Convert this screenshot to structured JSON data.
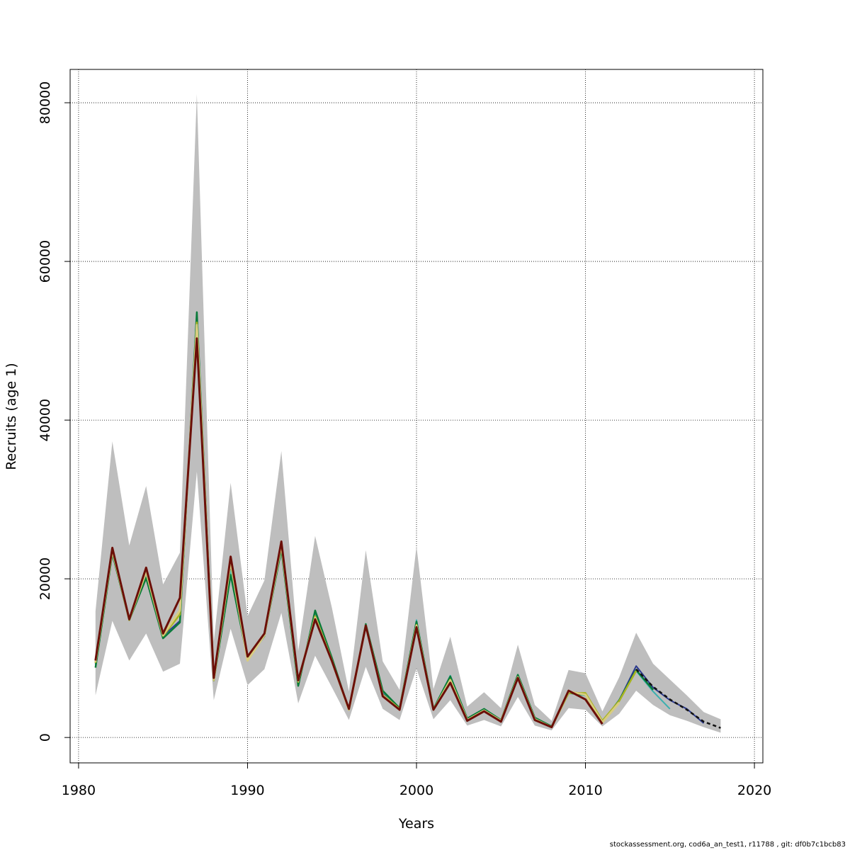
{
  "chart_data": {
    "type": "line",
    "title": "",
    "xlabel": "Years",
    "ylabel": "Recruits (age 1)",
    "xlim": [
      1979.5,
      2020.5
    ],
    "ylim": [
      -3200,
      84200
    ],
    "xticks": [
      1980,
      1990,
      2000,
      2010,
      2020
    ],
    "xtick_labels": [
      "1980",
      "1990",
      "2000",
      "2010",
      "2020"
    ],
    "yticks": [
      0,
      20000,
      40000,
      60000,
      80000
    ],
    "ytick_labels": [
      "0",
      "20000",
      "40000",
      "60000",
      "80000"
    ],
    "grid": true,
    "band": {
      "x": [
        1981,
        1982,
        1983,
        1984,
        1985,
        1986,
        1987,
        1988,
        1989,
        1990,
        1991,
        1992,
        1993,
        1994,
        1995,
        1996,
        1997,
        1998,
        1999,
        2000,
        2001,
        2002,
        2003,
        2004,
        2005,
        2006,
        2007,
        2008,
        2009,
        2010,
        2011,
        2012,
        2013,
        2014,
        2015,
        2016,
        2017,
        2018
      ],
      "low": [
        5300,
        14700,
        9700,
        13100,
        8300,
        9300,
        33500,
        4700,
        13700,
        6600,
        8600,
        15700,
        4300,
        10300,
        6300,
        2200,
        8900,
        3600,
        2200,
        8700,
        2300,
        4700,
        1500,
        2200,
        1400,
        5100,
        1500,
        900,
        3700,
        3500,
        1400,
        3000,
        5900,
        4100,
        2800,
        2100,
        1300,
        600
      ],
      "high": [
        15900,
        37300,
        24200,
        31700,
        19300,
        23300,
        81100,
        12100,
        32100,
        15300,
        19800,
        36100,
        10900,
        25400,
        16300,
        5800,
        23600,
        9600,
        6000,
        24100,
        6100,
        12700,
        3900,
        5700,
        3700,
        11700,
        4100,
        2100,
        8500,
        8100,
        3300,
        7600,
        13200,
        9300,
        7300,
        5300,
        3200,
        2300
      ]
    },
    "series": [
      {
        "color": "#2b3a8f",
        "width": 2,
        "x": [
          1981,
          1982,
          1983,
          1984,
          1985,
          1986,
          1987,
          1988,
          1989,
          1990,
          1991,
          1992,
          1993,
          1994,
          1995,
          1996,
          1997,
          1998,
          1999,
          2000,
          2001,
          2002,
          2003,
          2004,
          2005,
          2006,
          2007,
          2008,
          2009,
          2010,
          2011,
          2012,
          2013,
          2014,
          2015,
          2016,
          2017
        ],
        "values": [
          9300,
          23500,
          14900,
          20500,
          12800,
          14700,
          53000,
          7400,
          21500,
          9800,
          12900,
          24000,
          6800,
          15700,
          9800,
          3500,
          14100,
          5700,
          3500,
          14500,
          3500,
          7600,
          2300,
          3500,
          2200,
          7700,
          2400,
          1300,
          5800,
          5500,
          1900,
          4700,
          9000,
          6300,
          4700,
          3600,
          1800
        ]
      },
      {
        "color": "#3bb0b0",
        "width": 2,
        "x": [
          1981,
          1982,
          1983,
          1984,
          1985,
          1986,
          1987,
          1988,
          1989,
          1990,
          1991,
          1992,
          1993,
          1994,
          1995,
          1996,
          1997,
          1998,
          1999,
          2000,
          2001,
          2002,
          2003,
          2004,
          2005,
          2006,
          2007,
          2008,
          2009,
          2010,
          2011,
          2012,
          2013,
          2014,
          2015
        ],
        "values": [
          9100,
          23300,
          14800,
          20200,
          12600,
          14500,
          53200,
          7300,
          21000,
          9800,
          12800,
          23800,
          6700,
          15800,
          9900,
          3500,
          14200,
          5800,
          3600,
          14800,
          3600,
          7800,
          2400,
          3600,
          2200,
          7900,
          2500,
          1400,
          5600,
          5300,
          1900,
          4600,
          8400,
          5800,
          3600
        ]
      },
      {
        "color": "#0a7a3a",
        "width": 2.5,
        "x": [
          1981,
          1982,
          1983,
          1984,
          1985,
          1986,
          1987,
          1988,
          1989,
          1990,
          1991,
          1992,
          1993,
          1994,
          1995,
          1996,
          1997,
          1998,
          1999,
          2000,
          2001,
          2002,
          2003,
          2004,
          2005,
          2006,
          2007,
          2008,
          2009,
          2010,
          2011,
          2012,
          2013,
          2014
        ],
        "values": [
          8800,
          23200,
          14800,
          20100,
          12500,
          14500,
          53600,
          7200,
          20500,
          9900,
          12800,
          23700,
          6500,
          16000,
          10000,
          3500,
          14300,
          5900,
          3700,
          14600,
          3600,
          7700,
          2400,
          3600,
          2200,
          7900,
          2500,
          1400,
          5600,
          5400,
          1900,
          4700,
          8500,
          6000
        ]
      },
      {
        "color": "#a8b420",
        "width": 2.5,
        "x": [
          1981,
          1982,
          1983,
          1984,
          1985,
          1986,
          1987,
          1988,
          1989,
          1990,
          1991,
          1992,
          1993,
          1994,
          1995,
          1996,
          1997,
          1998,
          1999,
          2000,
          2001,
          2002,
          2003,
          2004,
          2005,
          2006,
          2007,
          2008,
          2009,
          2010,
          2011,
          2012,
          2013
        ],
        "values": [
          9400,
          23500,
          14800,
          20800,
          12800,
          15500,
          52300,
          7200,
          22000,
          9700,
          12900,
          24200,
          7000,
          15300,
          9700,
          3500,
          14100,
          5400,
          3600,
          14200,
          3500,
          7300,
          2200,
          3400,
          2100,
          7600,
          2300,
          1300,
          5600,
          5600,
          2100,
          4600,
          8400
        ]
      },
      {
        "color": "#d8cc80",
        "width": 3,
        "x": [
          1981,
          1982,
          1983,
          1984,
          1985,
          1986,
          1987,
          1988,
          1989,
          1990,
          1991,
          1992,
          1993,
          1994,
          1995,
          1996,
          1997,
          1998,
          1999,
          2000,
          2001,
          2002,
          2003,
          2004,
          2005,
          2006,
          2007,
          2008,
          2009,
          2010,
          2011,
          2012
        ],
        "values": [
          9500,
          23600,
          14900,
          20900,
          12900,
          16000,
          52000,
          7300,
          22200,
          9700,
          12900,
          24300,
          7100,
          15100,
          9600,
          3500,
          14100,
          5300,
          3500,
          14100,
          3500,
          7200,
          2200,
          3400,
          2100,
          7600,
          2300,
          1300,
          5800,
          5400,
          1900,
          4400
        ]
      },
      {
        "color": "#6b0f08",
        "width": 3,
        "x": [
          1981,
          1982,
          1983,
          1984,
          1985,
          1986,
          1987,
          1988,
          1989,
          1990,
          1991,
          1992,
          1993,
          1994,
          1995,
          1996,
          1997,
          1998,
          1999,
          2000,
          2001,
          2002,
          2003,
          2004,
          2005,
          2006,
          2007,
          2008,
          2009,
          2010,
          2011
        ],
        "values": [
          9700,
          23900,
          14900,
          21400,
          13100,
          17600,
          50300,
          7500,
          22800,
          10200,
          13100,
          24700,
          7200,
          14900,
          9600,
          3600,
          14100,
          5200,
          3500,
          13900,
          3500,
          6900,
          2100,
          3300,
          2000,
          7500,
          2200,
          1300,
          5900,
          4800,
          1700
        ]
      },
      {
        "color": "#111111",
        "width": 2.5,
        "dash": "5,4",
        "x": [
          2013,
          2014,
          2015,
          2016,
          2017,
          2018
        ],
        "values": [
          8600,
          6400,
          4800,
          3500,
          2000,
          1200
        ]
      }
    ]
  },
  "footer": "stockassessment.org, cod6a_an_test1, r11788 , git: df0b7c1bcb83"
}
